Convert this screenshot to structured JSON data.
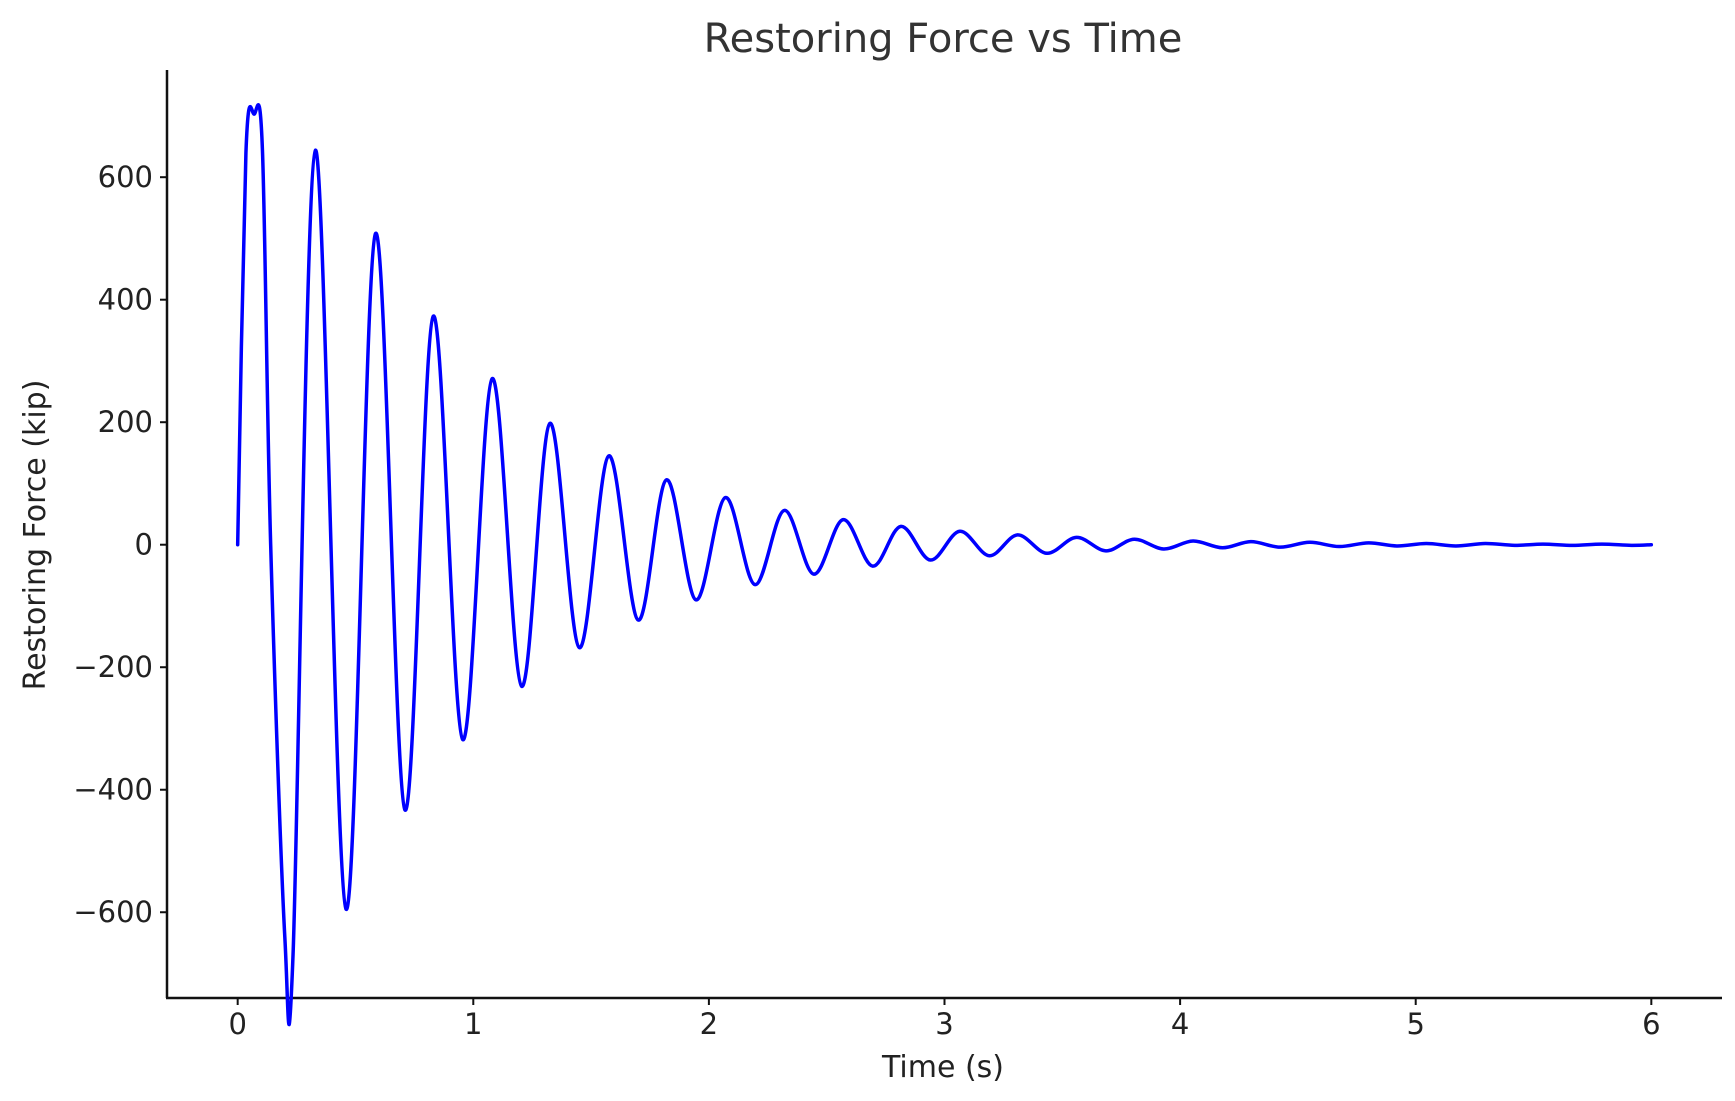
{
  "chart_data": {
    "type": "line",
    "title": "Restoring Force vs Time",
    "xlabel": "Time (s)",
    "ylabel": "Restoring Force (kip)",
    "xlim": [
      -0.3,
      6.3
    ],
    "ylim": [
      -740,
      775
    ],
    "xticks": [
      0,
      1,
      2,
      3,
      4,
      5,
      6
    ],
    "xtick_labels": [
      "0",
      "1",
      "2",
      "3",
      "4",
      "5",
      "6"
    ],
    "yticks": [
      -600,
      -400,
      -200,
      0,
      200,
      400,
      600
    ],
    "ytick_labels": [
      "−600",
      "−400",
      "−200",
      "0",
      "200",
      "400",
      "600"
    ],
    "grid": false,
    "legend": false,
    "series": [
      {
        "color": "#0000ff",
        "x": [
          0.0,
          0.035,
          0.07,
          0.105,
          0.14,
          0.2,
          0.235,
          0.33,
          0.46,
          0.585,
          0.71,
          0.83,
          0.955,
          1.08,
          1.205,
          1.325,
          1.45,
          1.575,
          1.7,
          1.82,
          1.945,
          2.07,
          2.195,
          2.32,
          2.445,
          2.57,
          2.695,
          2.815,
          2.94,
          3.065,
          3.19,
          3.31,
          3.435,
          3.56,
          3.685,
          3.805,
          3.93,
          4.055,
          4.18,
          4.3,
          4.425,
          4.55,
          4.675,
          4.8,
          4.92,
          5.045,
          5.17,
          5.295,
          5.42,
          5.54,
          5.665,
          5.79,
          5.915,
          6.0
        ],
        "y": [
          0,
          640,
          703,
          645,
          0,
          -640,
          -669,
          644,
          -595,
          508,
          -433,
          373,
          -318,
          271,
          -231,
          198,
          -168,
          145,
          -123,
          106,
          -90,
          77,
          -65,
          56,
          -48,
          41,
          -35,
          30,
          -25,
          22,
          -18,
          16,
          -14,
          12,
          -10,
          9,
          -7,
          6,
          -5,
          5,
          -4,
          4,
          -3,
          3,
          -2,
          2,
          -2,
          2,
          -1,
          1,
          -1,
          1,
          -1,
          0
        ]
      }
    ]
  }
}
